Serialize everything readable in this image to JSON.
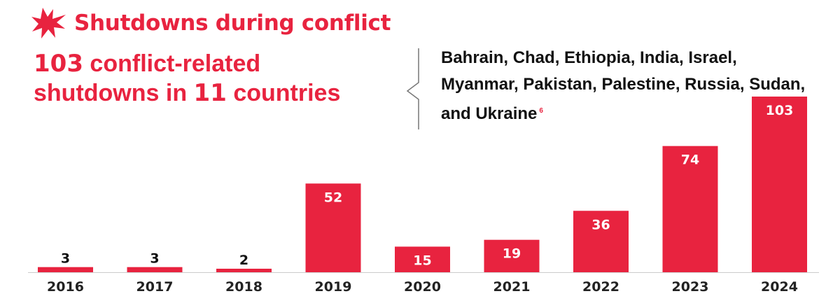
{
  "header": {
    "icon": "burst-icon",
    "title": "Shutdowns during conflict"
  },
  "headline": {
    "count": "103",
    "line1_rest": " conflict-related",
    "line2_start": "shutdowns in ",
    "countries_count": "11",
    "line2_end": " countries"
  },
  "countries_note": {
    "text": "Bahrain, Chad, Ethiopia, India, Israel, Myanmar, Pakistan, Palestine, Russia, Sudan, and Ukraine",
    "footnote": "6"
  },
  "colors": {
    "accent": "#e8233f",
    "text": "#111111",
    "label_on_bar": "#ffffff",
    "label_above_bar": "#111111",
    "axis": "#cccccc"
  },
  "chart_data": {
    "type": "bar",
    "categories": [
      "2016",
      "2017",
      "2018",
      "2019",
      "2020",
      "2021",
      "2022",
      "2023",
      "2024"
    ],
    "values": [
      3,
      3,
      2,
      52,
      15,
      19,
      36,
      74,
      103
    ],
    "title": "",
    "xlabel": "",
    "ylabel": "",
    "ylim": [
      0,
      103
    ],
    "grid": false,
    "legend": "none"
  }
}
